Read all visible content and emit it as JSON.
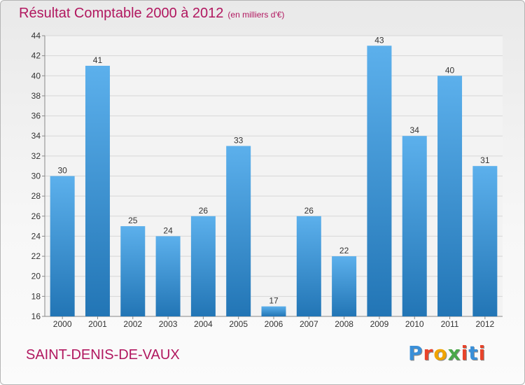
{
  "title": "Résultat Comptable 2000 à 2012",
  "unit_note": "(en milliers d'€)",
  "place": "SAINT-DENIS-DE-VAUX",
  "logo": {
    "letters": [
      "P",
      "r",
      "o",
      "x",
      "i",
      "t",
      "i"
    ],
    "colors": [
      "#3a8fd8",
      "#e8432a",
      "#f0a400",
      "#4aa84a",
      "#e8432a",
      "#3a8fd8",
      "#e8432a"
    ]
  },
  "colors": {
    "bar_light": "#5cb0ec",
    "bar_dark": "#2275b5",
    "title": "#b1175f"
  },
  "chart_data": {
    "type": "bar",
    "title": "Résultat Comptable 2000 à 2012",
    "categories": [
      "2000",
      "2001",
      "2002",
      "2003",
      "2004",
      "2005",
      "2006",
      "2007",
      "2008",
      "2009",
      "2010",
      "2011",
      "2012"
    ],
    "values": [
      30,
      41,
      25,
      24,
      26,
      33,
      17,
      26,
      22,
      43,
      34,
      40,
      31
    ],
    "ylim": [
      16,
      44
    ],
    "yticks": [
      16,
      18,
      20,
      22,
      24,
      26,
      28,
      30,
      32,
      34,
      36,
      38,
      40,
      42,
      44
    ],
    "grid": true,
    "xlabel": "",
    "ylabel": ""
  }
}
